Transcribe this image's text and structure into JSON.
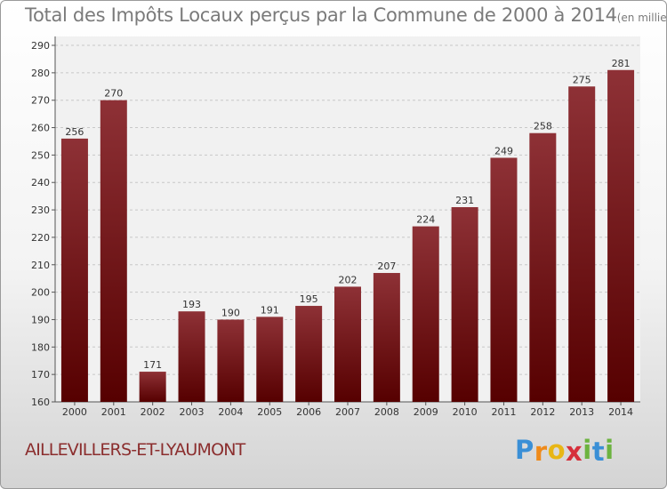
{
  "chart_data": {
    "type": "bar",
    "title": "Total des Impôts Locaux perçus par la Commune de 2000 à 2014",
    "unit_label": "(en milliers d'€)",
    "categories": [
      "2000",
      "2001",
      "2002",
      "2003",
      "2004",
      "2005",
      "2006",
      "2007",
      "2008",
      "2009",
      "2010",
      "2011",
      "2012",
      "2013",
      "2014"
    ],
    "values": [
      256,
      270,
      171,
      193,
      190,
      191,
      195,
      202,
      207,
      224,
      231,
      249,
      258,
      275,
      281
    ],
    "ylim": [
      160,
      290
    ],
    "yticks": [
      160,
      170,
      180,
      190,
      200,
      210,
      220,
      230,
      240,
      250,
      260,
      270,
      280,
      290
    ],
    "xlabel": "",
    "ylabel": "",
    "grid": true,
    "bar_color_top": "#8e3136",
    "bar_color_bottom": "#560000"
  },
  "commune": "AILLEVILLERS-ET-LYAUMONT",
  "logo": {
    "letters": [
      "P",
      "r",
      "o",
      "x",
      "i",
      "t",
      "i"
    ],
    "colors": [
      "#3a8fd6",
      "#ef8a1a",
      "#e8b615",
      "#d62f3b",
      "#6cb33f",
      "#3a8fd6",
      "#6cb33f"
    ]
  }
}
